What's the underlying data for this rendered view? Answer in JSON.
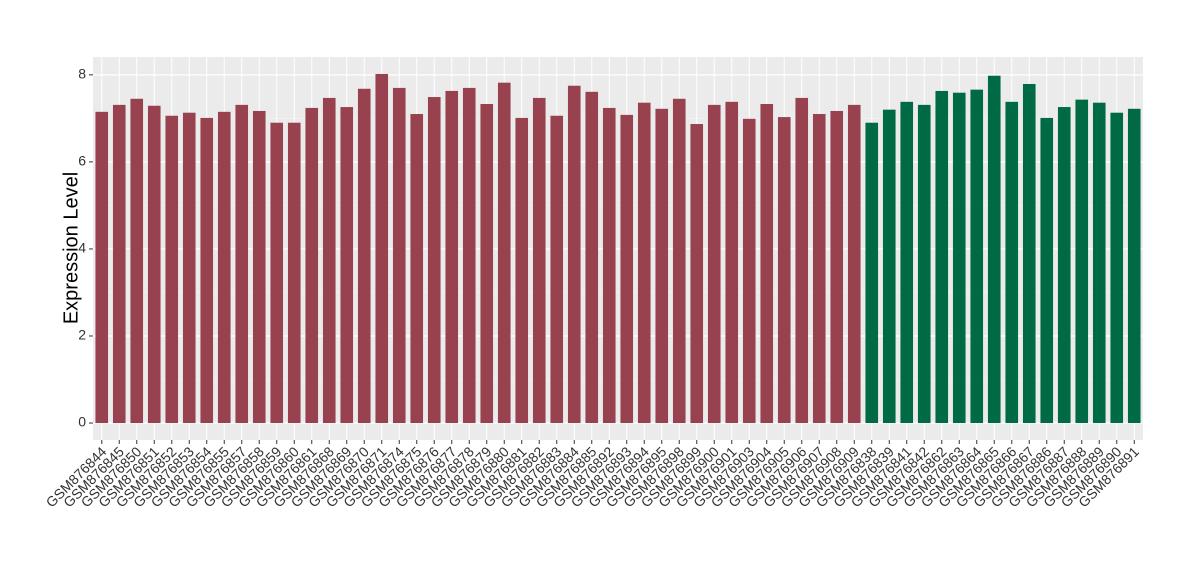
{
  "chart_data": {
    "type": "bar",
    "y_label": "Expression Level",
    "categories": [
      "GSM876844",
      "GSM876845",
      "GSM876850",
      "GSM876851",
      "GSM876852",
      "GSM876853",
      "GSM876854",
      "GSM876855",
      "GSM876857",
      "GSM876858",
      "GSM876859",
      "GSM876860",
      "GSM876861",
      "GSM876868",
      "GSM876869",
      "GSM876870",
      "GSM876871",
      "GSM876874",
      "GSM876875",
      "GSM876876",
      "GSM876877",
      "GSM876878",
      "GSM876879",
      "GSM876880",
      "GSM876881",
      "GSM876882",
      "GSM876883",
      "GSM876884",
      "GSM876885",
      "GSM876892",
      "GSM876893",
      "GSM876894",
      "GSM876895",
      "GSM876898",
      "GSM876899",
      "GSM876900",
      "GSM876901",
      "GSM876903",
      "GSM876904",
      "GSM876905",
      "GSM876906",
      "GSM876907",
      "GSM876908",
      "GSM876909",
      "GSM876838",
      "GSM876839",
      "GSM876841",
      "GSM876842",
      "GSM876862",
      "GSM876863",
      "GSM876864",
      "GSM876865",
      "GSM876866",
      "GSM876867",
      "GSM876886",
      "GSM876887",
      "GSM876888",
      "GSM876889",
      "GSM876890",
      "GSM876891"
    ],
    "values": [
      7.15,
      7.31,
      7.45,
      7.29,
      7.06,
      7.13,
      7.01,
      7.15,
      7.31,
      7.17,
      6.9,
      6.9,
      7.24,
      7.47,
      7.26,
      7.68,
      8.02,
      7.7,
      7.1,
      7.49,
      7.63,
      7.7,
      7.33,
      7.82,
      7.01,
      7.47,
      7.06,
      7.75,
      7.61,
      7.24,
      7.08,
      7.36,
      7.22,
      7.45,
      6.87,
      7.31,
      7.38,
      6.99,
      7.33,
      7.03,
      7.47,
      7.1,
      7.17,
      7.31,
      6.9,
      7.2,
      7.38,
      7.31,
      7.63,
      7.59,
      7.66,
      7.98,
      7.38,
      7.79,
      7.01,
      7.26,
      7.43,
      7.36,
      7.13,
      7.22
    ],
    "colors": [
      "#98424f",
      "#98424f",
      "#98424f",
      "#98424f",
      "#98424f",
      "#98424f",
      "#98424f",
      "#98424f",
      "#98424f",
      "#98424f",
      "#98424f",
      "#98424f",
      "#98424f",
      "#98424f",
      "#98424f",
      "#98424f",
      "#98424f",
      "#98424f",
      "#98424f",
      "#98424f",
      "#98424f",
      "#98424f",
      "#98424f",
      "#98424f",
      "#98424f",
      "#98424f",
      "#98424f",
      "#98424f",
      "#98424f",
      "#98424f",
      "#98424f",
      "#98424f",
      "#98424f",
      "#98424f",
      "#98424f",
      "#98424f",
      "#98424f",
      "#98424f",
      "#98424f",
      "#98424f",
      "#98424f",
      "#98424f",
      "#98424f",
      "#98424f",
      "#006a45",
      "#006a45",
      "#006a45",
      "#006a45",
      "#006a45",
      "#006a45",
      "#006a45",
      "#006a45",
      "#006a45",
      "#006a45",
      "#006a45",
      "#006a45",
      "#006a45",
      "#006a45",
      "#006a45",
      "#006a45"
    ],
    "ylim": [
      -0.39,
      8.41
    ],
    "yticks": [
      0,
      2,
      4,
      6,
      8
    ],
    "grid": true
  }
}
